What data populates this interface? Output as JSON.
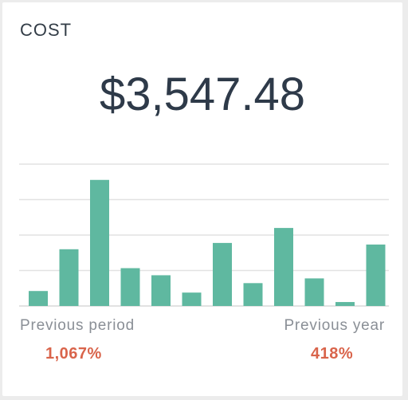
{
  "widget": {
    "title": "COST",
    "value": "$3,547.48"
  },
  "comparisons": {
    "previous_period": {
      "label": "Previous period",
      "value": "1,067%"
    },
    "previous_year": {
      "label": "Previous year",
      "value": "418%"
    }
  },
  "colors": {
    "bar": "#5fb8a0",
    "change": "#d9644b",
    "grid": "#e2e2e2"
  },
  "chart_data": {
    "type": "bar",
    "values": [
      19,
      72,
      160,
      48,
      39,
      17,
      80,
      29,
      99,
      35,
      5,
      78
    ],
    "ylim": [
      0,
      180
    ],
    "grid": true
  }
}
